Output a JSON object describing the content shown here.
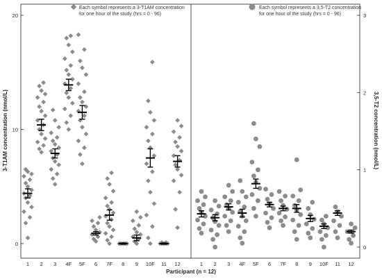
{
  "colors": {
    "marker": "#8c8c8c",
    "mean_bar": "#000000",
    "axis": "#222222"
  },
  "chart_data": [
    {
      "type": "scatter",
      "panel": "left",
      "ylabel": "3-T1AM concentration (nmol/L)",
      "ylim": [
        0,
        20
      ],
      "yticks": [
        "0",
        "10",
        "20"
      ],
      "marker": "diamond",
      "legend": "Each symbol represents a 3-T1AM concentration for one hour of the study (hrs = 0 - 96)",
      "categories": [
        "1",
        "2",
        "3",
        "4F",
        "5F",
        "6",
        "7F",
        "8",
        "9",
        "10F",
        "11",
        "12"
      ],
      "values": [
        [
          0.5,
          1.8,
          2.3,
          2.8,
          3.2,
          3.6,
          4.0,
          4.2,
          4.4,
          4.7,
          5.0,
          5.3,
          5.6,
          5.9,
          6.1,
          6.3,
          6.5
        ],
        [
          8.0,
          8.3,
          8.6,
          8.9,
          9.2,
          9.6,
          10.0,
          10.4,
          10.8,
          11.2,
          11.6,
          12.0,
          12.4,
          12.8,
          13.1,
          13.4,
          13.8,
          14.1
        ],
        [
          5.2,
          5.7,
          6.1,
          6.5,
          6.9,
          7.2,
          7.5,
          7.8,
          8.1,
          8.4,
          8.7,
          9.0,
          9.3,
          9.7,
          10.2,
          10.8,
          11.7
        ],
        [
          10.0,
          10.6,
          11.2,
          11.8,
          12.3,
          12.8,
          13.2,
          13.6,
          14.0,
          14.4,
          14.8,
          15.2,
          15.6,
          16.2,
          16.8,
          17.4,
          18.0,
          18.2
        ],
        [
          7.0,
          7.8,
          8.4,
          9.0,
          9.6,
          10.2,
          10.8,
          11.2,
          11.6,
          12.0,
          12.4,
          12.8,
          13.3,
          14.0,
          14.8,
          15.4,
          16.0,
          17.0,
          18.3
        ],
        [
          0.2,
          0.4,
          0.6,
          0.8,
          1.0,
          1.2,
          1.5,
          1.8,
          2.0,
          2.3
        ],
        [
          0.0,
          0.3,
          0.6,
          0.9,
          1.2,
          1.5,
          1.8,
          2.1,
          2.4,
          2.7,
          3.0,
          3.3,
          3.6,
          4.0,
          4.6,
          5.2,
          5.7,
          6.2
        ],
        [
          0.0,
          0.0,
          0.0,
          0.0,
          0.0,
          0.0,
          0.0,
          0.0,
          0.0,
          0.0
        ],
        [
          0.0,
          0.2,
          0.4,
          0.6,
          0.8,
          1.0,
          1.3,
          1.6,
          2.0,
          2.3,
          2.8
        ],
        [
          0.0,
          0.5,
          1.5,
          2.5,
          3.5,
          4.5,
          5.5,
          6.3,
          7.0,
          7.7,
          8.4,
          9.0,
          9.6,
          10.2,
          10.8,
          11.5,
          12.5,
          15.9
        ],
        [
          0.0,
          0.0,
          0.0,
          0.0,
          0.0,
          0.0,
          0.1,
          0.1
        ],
        [
          1.4,
          3.0,
          4.5,
          5.5,
          6.0,
          6.5,
          6.9,
          7.3,
          7.7,
          8.1,
          8.5,
          8.9,
          9.3,
          9.8,
          10.3,
          10.8
        ]
      ],
      "means": [
        4.4,
        10.4,
        7.9,
        13.9,
        11.5,
        0.9,
        2.5,
        0.0,
        0.5,
        7.5,
        0.0,
        7.2
      ],
      "errors": [
        0.4,
        0.5,
        0.4,
        0.5,
        0.6,
        0.15,
        0.45,
        0.05,
        0.25,
        0.8,
        0.05,
        0.5
      ]
    },
    {
      "type": "scatter",
      "panel": "right",
      "ylabel": "3,5-T2 concentration (nmol/L)",
      "ylim": [
        0,
        3
      ],
      "yticks": [
        "0",
        "1",
        "2",
        "3"
      ],
      "marker": "circle",
      "legend": "Each symbol represents a 3,5-T2 concentration for one hour of the study (hrs = 0 - 96)",
      "xlabel": "Participant (n = 12)",
      "categories": [
        "1",
        "2",
        "3",
        "4F",
        "5F",
        "6",
        "7F",
        "8",
        "9",
        "10F",
        "11",
        "12"
      ],
      "values": [
        [
          0.18,
          0.24,
          0.3,
          0.35,
          0.4,
          0.45,
          0.5,
          0.55,
          0.6,
          0.65,
          0.72
        ],
        [
          0.0,
          0.1,
          0.16,
          0.22,
          0.28,
          0.33,
          0.38,
          0.43,
          0.48,
          0.53,
          0.6
        ],
        [
          0.2,
          0.28,
          0.34,
          0.4,
          0.45,
          0.5,
          0.55,
          0.6,
          0.65,
          0.72,
          0.8
        ],
        [
          0.05,
          0.12,
          0.2,
          0.27,
          0.34,
          0.4,
          0.46,
          0.52,
          0.58,
          0.65,
          0.72,
          0.86
        ],
        [
          0.4,
          0.5,
          0.6,
          0.68,
          0.76,
          0.84,
          0.92,
          1.0,
          1.1,
          1.3,
          1.4,
          1.6
        ],
        [
          0.25,
          0.32,
          0.38,
          0.44,
          0.5,
          0.56,
          0.62,
          0.68,
          0.75
        ],
        [
          0.28,
          0.34,
          0.39,
          0.44,
          0.49,
          0.54,
          0.6,
          0.66,
          0.72
        ],
        [
          0.1,
          0.2,
          0.28,
          0.35,
          0.42,
          0.48,
          0.54,
          0.6,
          0.66,
          0.74,
          1.13
        ],
        [
          0.12,
          0.18,
          0.24,
          0.3,
          0.36,
          0.42,
          0.5,
          0.58
        ],
        [
          0.0,
          0.1,
          0.15,
          0.2,
          0.25,
          0.3,
          0.35,
          0.4
        ],
        [
          0.12,
          0.2,
          0.28,
          0.34,
          0.4,
          0.46,
          0.52
        ],
        [
          0.05,
          0.1,
          0.15,
          0.2,
          0.25,
          0.3
        ]
      ],
      "means": [
        0.43,
        0.38,
        0.52,
        0.44,
        0.82,
        0.55,
        0.5,
        0.5,
        0.37,
        0.27,
        0.44,
        0.2
      ],
      "errors": [
        0.04,
        0.04,
        0.04,
        0.05,
        0.06,
        0.03,
        0.03,
        0.05,
        0.04,
        0.03,
        0.03,
        0.02
      ]
    }
  ]
}
